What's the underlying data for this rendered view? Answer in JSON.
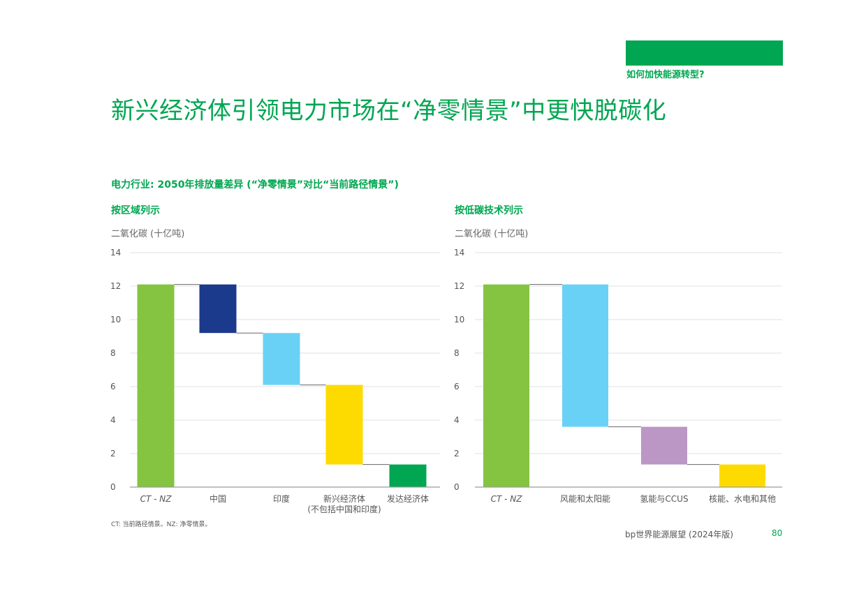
{
  "header": {
    "label": "如何加快能源转型?"
  },
  "title": "新兴经济体引领电力市场在“净零情景”中更快脱碳化",
  "chart_title": "电力行业: 2050年排放量差异 (“净零情景”对比“当前路径情景”)",
  "colors": {
    "accent": "#00a651",
    "bar_bg": "#00a651",
    "grid": "#e2e2e2",
    "axis": "#9a9a9a",
    "connector": "#666666"
  },
  "chart_data": [
    {
      "type": "bar",
      "subtitle": "按区域列示",
      "ylabel": "二氧化碳 (十亿吨)",
      "ylim": [
        0,
        14
      ],
      "yticks": [
        "0",
        "2",
        "4",
        "6",
        "8",
        "10",
        "12",
        "14"
      ],
      "categories": [
        "CT - NZ",
        "中国",
        "印度",
        "新兴经济体",
        "发达经济体"
      ],
      "category_notes": [
        "",
        "",
        "",
        "(不包括中国和印度)",
        ""
      ],
      "bars": [
        {
          "start": 0,
          "end": 12.1,
          "color": "#84c441"
        },
        {
          "start": 9.2,
          "end": 12.1,
          "color": "#1b3a8c"
        },
        {
          "start": 6.1,
          "end": 9.2,
          "color": "#6ad1f6"
        },
        {
          "start": 1.35,
          "end": 6.1,
          "color": "#fedb00"
        },
        {
          "start": 0,
          "end": 1.35,
          "color": "#00a651"
        }
      ]
    },
    {
      "type": "bar",
      "subtitle": "按低碳技术列示",
      "ylabel": "二氧化碳 (十亿吨)",
      "ylim": [
        0,
        14
      ],
      "yticks": [
        "0",
        "2",
        "4",
        "6",
        "8",
        "10",
        "12",
        "14"
      ],
      "categories": [
        "CT - NZ",
        "风能和太阳能",
        "氢能与CCUS",
        "核能、水电和其他"
      ],
      "category_notes": [
        "",
        "",
        "",
        ""
      ],
      "bars": [
        {
          "start": 0,
          "end": 12.1,
          "color": "#84c441"
        },
        {
          "start": 3.6,
          "end": 12.1,
          "color": "#6ad1f6"
        },
        {
          "start": 1.35,
          "end": 3.6,
          "color": "#bb97c5"
        },
        {
          "start": 0,
          "end": 1.35,
          "color": "#fedb00"
        }
      ]
    }
  ],
  "footnote": "CT: 当前路径情景。NZ: 净零情景。",
  "publication": "bp世界能源展望 (2024年版)",
  "page_number": "80"
}
